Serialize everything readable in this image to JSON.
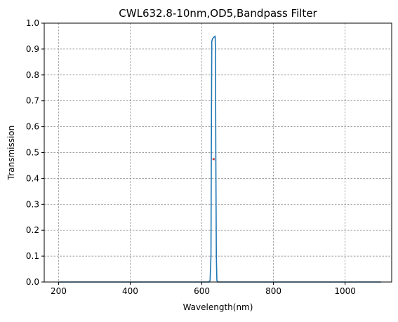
{
  "chart_data": {
    "type": "line",
    "title": "CWL632.8-10nm,OD5,Bandpass Filter",
    "xlabel": "Wavelength(nm)",
    "ylabel": "Transmission",
    "xlim": [
      160,
      1130
    ],
    "ylim": [
      0,
      1.0
    ],
    "xticks": [
      200,
      400,
      600,
      800,
      1000
    ],
    "yticks": [
      0.0,
      0.1,
      0.2,
      0.3,
      0.4,
      0.5,
      0.6,
      0.7,
      0.8,
      0.9,
      1.0
    ],
    "xtick_labels": [
      "200",
      "400",
      "600",
      "800",
      "1000"
    ],
    "ytick_labels": [
      "0.0",
      "0.1",
      "0.2",
      "0.3",
      "0.4",
      "0.5",
      "0.6",
      "0.7",
      "0.8",
      "0.9",
      "1.0"
    ],
    "grid": true,
    "series": [
      {
        "color": "#1f77b4",
        "x": [
          200,
          620,
          623,
          625.5,
          626.5,
          627.8,
          630,
          633,
          636,
          637.2,
          638,
          639,
          640.5,
          642,
          645,
          1100
        ],
        "y": [
          0,
          0,
          0.005,
          0.1,
          0.5,
          0.93,
          0.94,
          0.945,
          0.948,
          0.95,
          0.9,
          0.5,
          0.1,
          0.005,
          0,
          0
        ]
      }
    ],
    "annotations": [
      {
        "x": 632.8,
        "y": 0.475,
        "color": "#b22222",
        "marker": "x"
      }
    ]
  }
}
